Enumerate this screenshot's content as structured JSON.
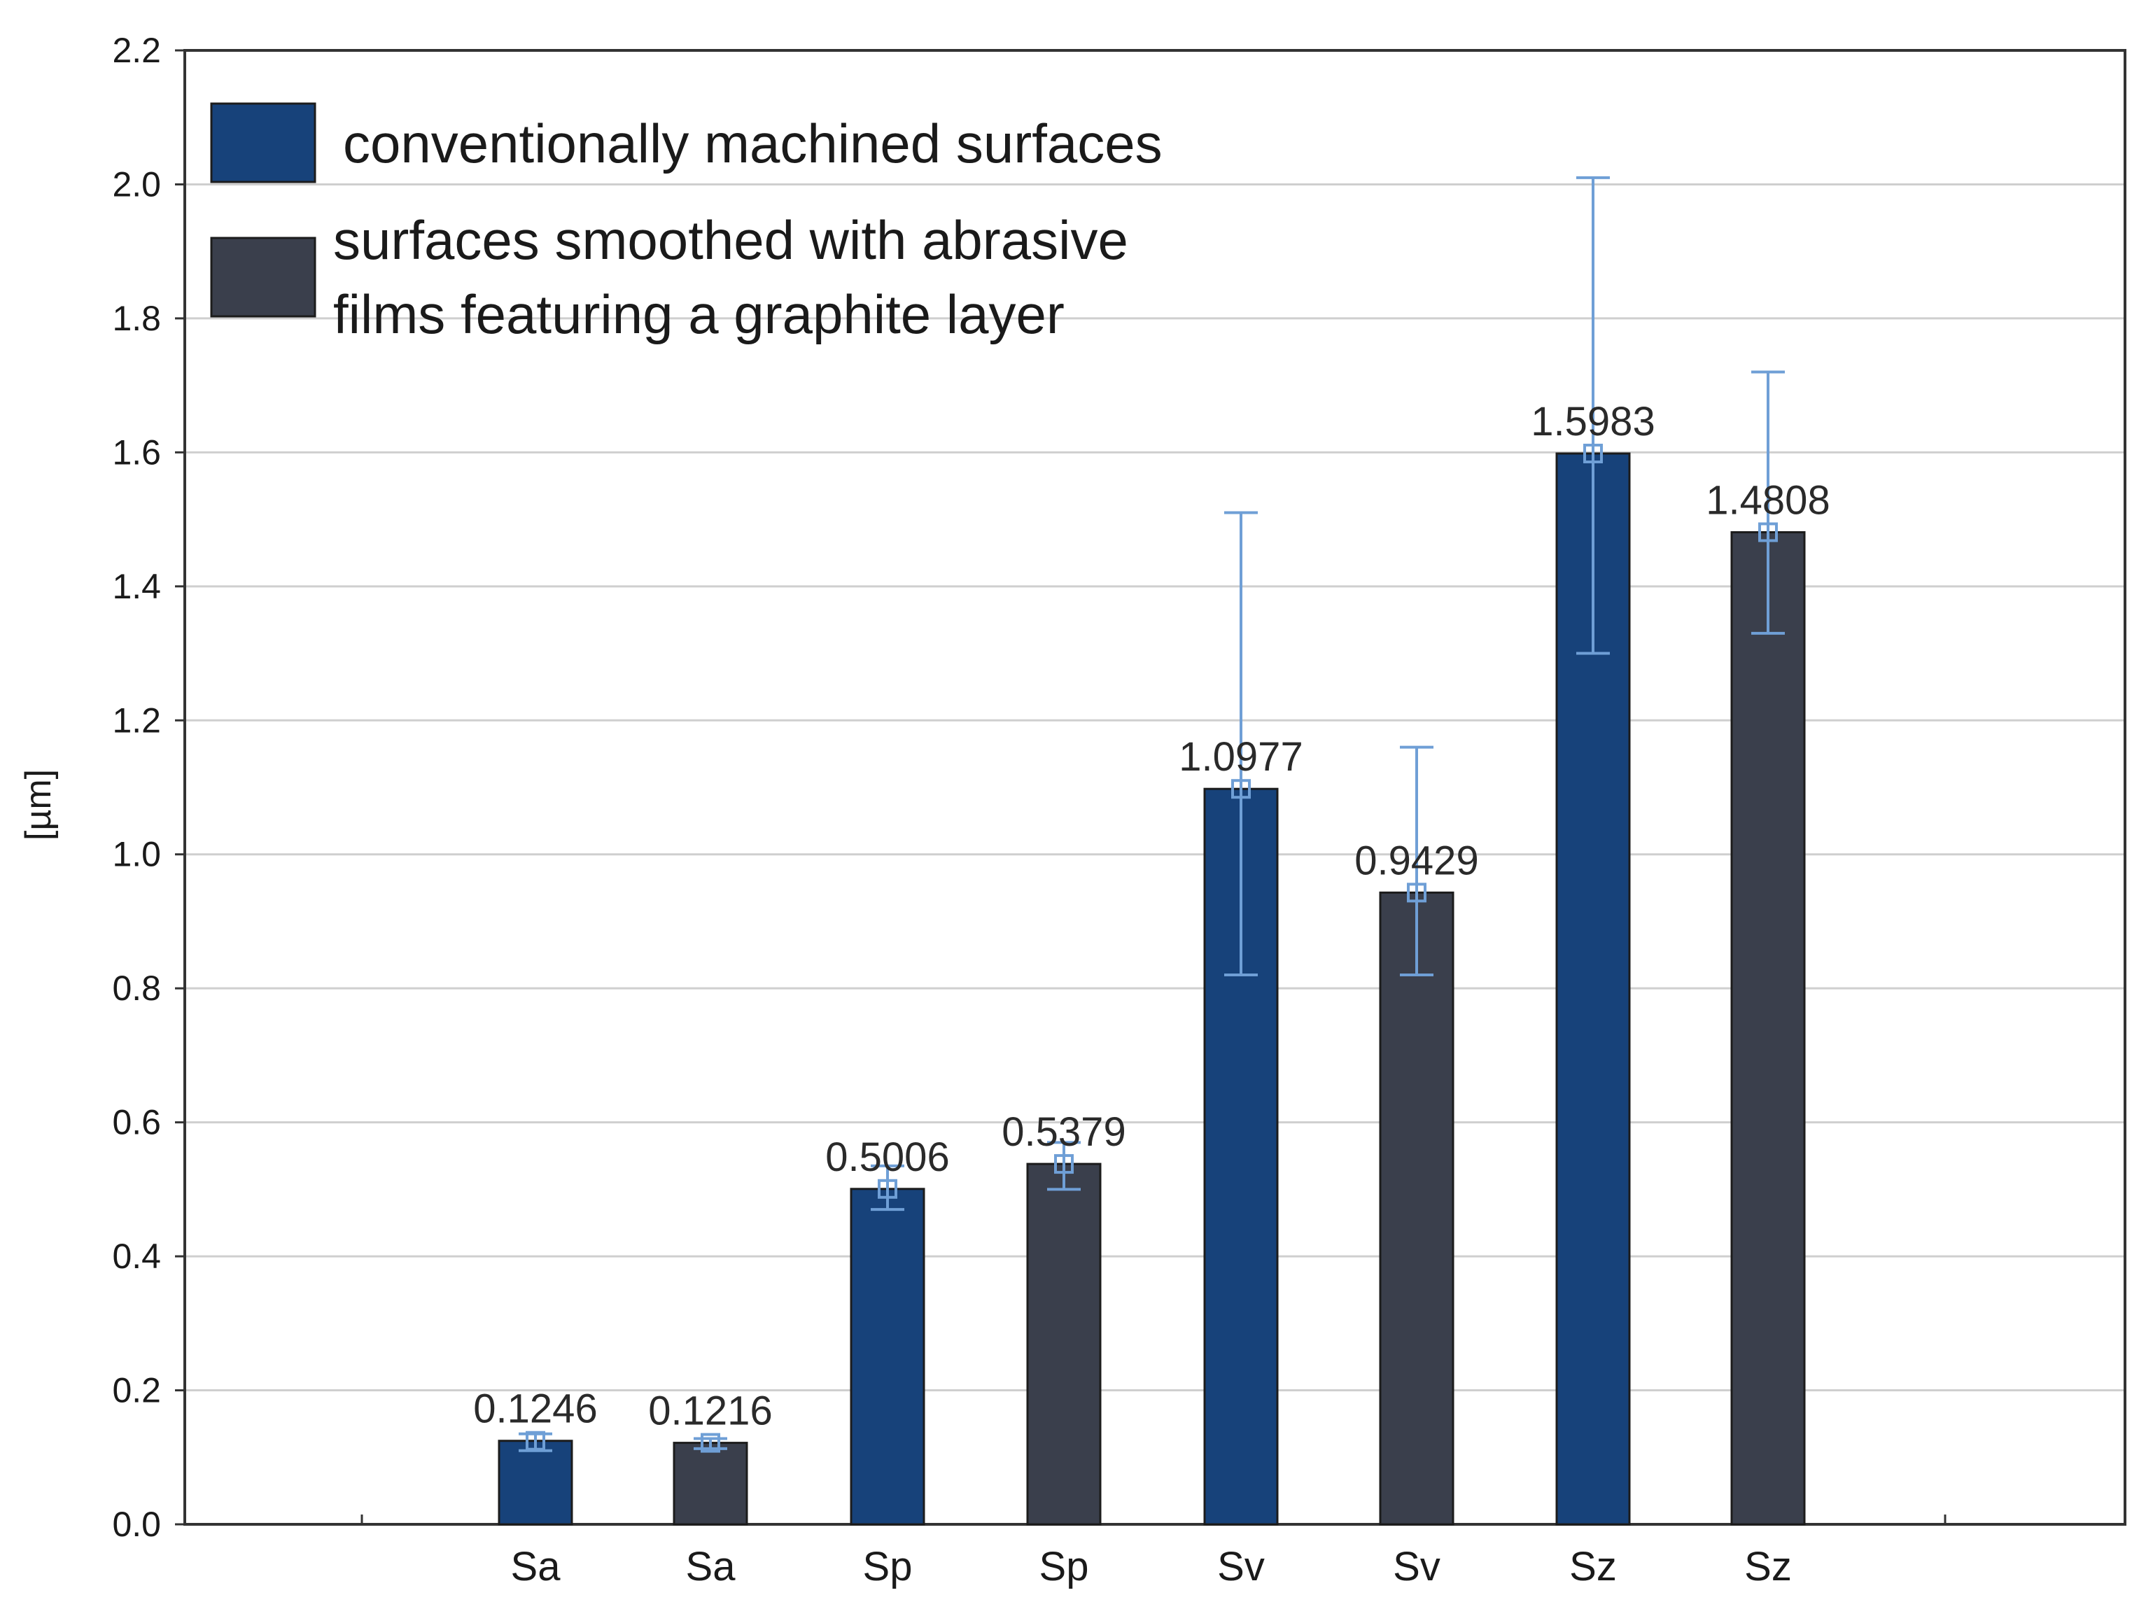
{
  "chart_data": {
    "type": "bar",
    "title": "",
    "xlabel": "",
    "ylabel": "[µm]",
    "ylim": [
      0,
      2.2
    ],
    "yticks": [
      "0.0",
      "0.2",
      "0.4",
      "0.6",
      "0.8",
      "1.0",
      "1.2",
      "1.4",
      "1.6",
      "1.8",
      "2.0",
      "2.2"
    ],
    "grid": true,
    "legend_position": "top-left",
    "colors": {
      "conventional": "#17427a",
      "graphite": "#3a3f4c",
      "error_bar": "#6f9fd6"
    },
    "legend": [
      {
        "series": "conventional",
        "lines": [
          "conventionally machined surfaces"
        ]
      },
      {
        "series": "graphite",
        "lines": [
          "surfaces smoothed with abrasive",
          "films featuring a graphite layer"
        ]
      }
    ],
    "bars": [
      {
        "category": "Sa",
        "series": "conventional",
        "value": 0.1246,
        "label": "0.1246",
        "err_low": 0.11,
        "err_high": 0.135
      },
      {
        "category": "Sa",
        "series": "graphite",
        "value": 0.1216,
        "label": "0.1216",
        "err_low": 0.113,
        "err_high": 0.128
      },
      {
        "category": "Sp",
        "series": "conventional",
        "value": 0.5006,
        "label": "0.5006",
        "err_low": 0.47,
        "err_high": 0.535
      },
      {
        "category": "Sp",
        "series": "graphite",
        "value": 0.5379,
        "label": "0.5379",
        "err_low": 0.5,
        "err_high": 0.57
      },
      {
        "category": "Sv",
        "series": "conventional",
        "value": 1.0977,
        "label": "1.0977",
        "err_low": 0.82,
        "err_high": 1.51
      },
      {
        "category": "Sv",
        "series": "graphite",
        "value": 0.9429,
        "label": "0.9429",
        "err_low": 0.82,
        "err_high": 1.16
      },
      {
        "category": "Sz",
        "series": "conventional",
        "value": 1.5983,
        "label": "1.5983",
        "err_low": 1.3,
        "err_high": 2.01
      },
      {
        "category": "Sz",
        "series": "graphite",
        "value": 1.4808,
        "label": "1.4808",
        "err_low": 1.33,
        "err_high": 1.72
      }
    ]
  }
}
